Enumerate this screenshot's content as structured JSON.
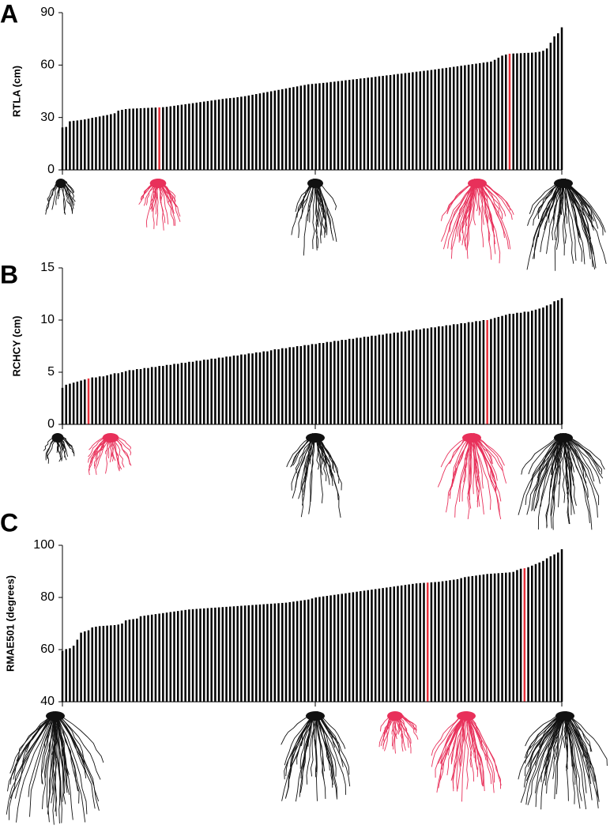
{
  "chart_data": [
    {
      "type": "bar",
      "panel_label": "A",
      "y_label": "RTLA (cm)",
      "color": "#000000",
      "highlight": [
        {
          "index": 26,
          "color": "#e8303a"
        },
        {
          "index": 120,
          "color": "#e8303a"
        }
      ],
      "ylim": [
        0,
        90
      ],
      "yticks": [
        0,
        30,
        60,
        90
      ],
      "values": [
        24.3,
        24.6,
        27.8,
        28.1,
        28.3,
        28.6,
        28.9,
        29.3,
        29.8,
        30.2,
        30.6,
        31.0,
        31.4,
        31.9,
        32.4,
        33.9,
        34.4,
        34.8,
        35.0,
        35.1,
        35.2,
        35.3,
        35.4,
        35.5,
        35.6,
        35.7,
        35.8,
        35.9,
        36.1,
        36.4,
        36.7,
        37.0,
        37.3,
        37.6,
        37.9,
        38.2,
        38.5,
        38.8,
        39.1,
        39.4,
        39.7,
        40.0,
        40.3,
        40.6,
        40.9,
        41.1,
        41.3,
        41.6,
        41.9,
        42.2,
        42.6,
        43.0,
        43.4,
        43.8,
        44.2,
        44.6,
        45.0,
        45.4,
        45.8,
        46.2,
        46.6,
        47.0,
        47.4,
        47.8,
        48.2,
        48.6,
        49.0,
        49.2,
        49.4,
        49.6,
        49.8,
        50.0,
        50.3,
        50.5,
        50.8,
        51.0,
        51.3,
        51.5,
        51.8,
        52.0,
        52.3,
        52.5,
        52.8,
        53.0,
        53.3,
        53.6,
        53.8,
        54.1,
        54.3,
        54.6,
        54.9,
        55.1,
        55.4,
        55.6,
        55.9,
        56.2,
        56.4,
        56.7,
        56.9,
        57.2,
        57.5,
        57.8,
        58.1,
        58.4,
        58.7,
        59.0,
        59.3,
        59.6,
        59.9,
        60.2,
        60.5,
        60.8,
        61.1,
        61.4,
        61.7,
        62.0,
        63.0,
        64.2,
        65.4,
        66.0,
        66.5,
        66.6,
        66.7,
        66.8,
        66.9,
        67.0,
        67.1,
        67.3,
        67.6,
        68.2,
        69.5,
        72.8,
        76.4,
        78.2,
        81.6
      ]
    },
    {
      "type": "bar",
      "panel_label": "B",
      "y_label": "RCHCY (cm)",
      "color": "#000000",
      "highlight": [
        {
          "index": 7,
          "color": "#e8303a"
        },
        {
          "index": 114,
          "color": "#e8303a"
        }
      ],
      "ylim": [
        0,
        15
      ],
      "yticks": [
        0,
        5,
        10,
        15
      ],
      "values": [
        3.5,
        3.8,
        3.9,
        4.0,
        4.1,
        4.2,
        4.3,
        4.4,
        4.5,
        4.5,
        4.6,
        4.6,
        4.7,
        4.8,
        4.9,
        4.9,
        5.0,
        5.1,
        5.2,
        5.2,
        5.3,
        5.3,
        5.4,
        5.4,
        5.5,
        5.5,
        5.6,
        5.6,
        5.7,
        5.7,
        5.8,
        5.8,
        5.9,
        5.9,
        6.0,
        6.0,
        6.1,
        6.1,
        6.2,
        6.2,
        6.3,
        6.3,
        6.4,
        6.4,
        6.5,
        6.5,
        6.6,
        6.6,
        6.7,
        6.7,
        6.8,
        6.8,
        6.9,
        6.9,
        7.0,
        7.0,
        7.1,
        7.2,
        7.2,
        7.3,
        7.3,
        7.4,
        7.4,
        7.5,
        7.5,
        7.6,
        7.6,
        7.7,
        7.7,
        7.8,
        7.8,
        7.9,
        7.9,
        8.0,
        8.0,
        8.1,
        8.1,
        8.2,
        8.2,
        8.3,
        8.3,
        8.4,
        8.4,
        8.5,
        8.5,
        8.6,
        8.6,
        8.7,
        8.7,
        8.8,
        8.8,
        8.9,
        8.9,
        9.0,
        9.0,
        9.1,
        9.1,
        9.2,
        9.2,
        9.3,
        9.3,
        9.4,
        9.4,
        9.5,
        9.5,
        9.6,
        9.6,
        9.7,
        9.7,
        9.8,
        9.8,
        9.9,
        9.9,
        10.0,
        10.0,
        10.1,
        10.2,
        10.3,
        10.4,
        10.5,
        10.6,
        10.6,
        10.7,
        10.7,
        10.8,
        10.8,
        10.9,
        11.0,
        11.1,
        11.2,
        11.4,
        11.5,
        11.8,
        11.9,
        12.1
      ]
    },
    {
      "type": "bar",
      "panel_label": "C",
      "y_label": "RMAE501 (degrees)",
      "color": "#000000",
      "highlight": [
        {
          "index": 98,
          "color": "#e8303a"
        },
        {
          "index": 124,
          "color": "#e8303a"
        }
      ],
      "ylim": [
        40,
        100
      ],
      "yticks": [
        40,
        60,
        80,
        100
      ],
      "values": [
        59.5,
        60.2,
        60.5,
        61.5,
        63.8,
        66.5,
        67.0,
        67.4,
        68.5,
        68.8,
        69.0,
        69.1,
        69.2,
        69.3,
        69.4,
        69.6,
        70.0,
        71.2,
        71.5,
        71.7,
        71.9,
        72.8,
        73.0,
        73.2,
        73.4,
        73.6,
        73.8,
        74.0,
        74.2,
        74.4,
        74.6,
        74.8,
        75.0,
        75.2,
        75.4,
        75.5,
        75.6,
        75.7,
        75.8,
        75.9,
        76.0,
        76.1,
        76.2,
        76.3,
        76.4,
        76.5,
        76.6,
        76.7,
        76.8,
        76.9,
        77.0,
        77.1,
        77.2,
        77.3,
        77.4,
        77.5,
        77.6,
        77.7,
        77.8,
        77.9,
        78.0,
        78.2,
        78.4,
        78.6,
        78.8,
        79.0,
        79.2,
        79.6,
        80.0,
        80.2,
        80.4,
        80.6,
        80.8,
        81.0,
        81.2,
        81.4,
        81.6,
        81.8,
        82.0,
        82.2,
        82.4,
        82.6,
        82.8,
        83.0,
        83.2,
        83.4,
        83.6,
        83.8,
        84.0,
        84.2,
        84.4,
        84.6,
        84.8,
        85.0,
        85.2,
        85.4,
        85.5,
        85.6,
        85.7,
        85.8,
        85.9,
        86.0,
        86.2,
        86.4,
        86.6,
        86.8,
        87.0,
        87.4,
        87.8,
        88.0,
        88.2,
        88.4,
        88.6,
        88.8,
        89.0,
        89.1,
        89.2,
        89.3,
        89.4,
        89.5,
        89.6,
        89.8,
        90.5,
        91.0,
        91.2,
        91.6,
        92.2,
        92.8,
        93.4,
        94.0,
        95.0,
        95.8,
        96.5,
        97.2,
        98.5
      ]
    }
  ]
}
